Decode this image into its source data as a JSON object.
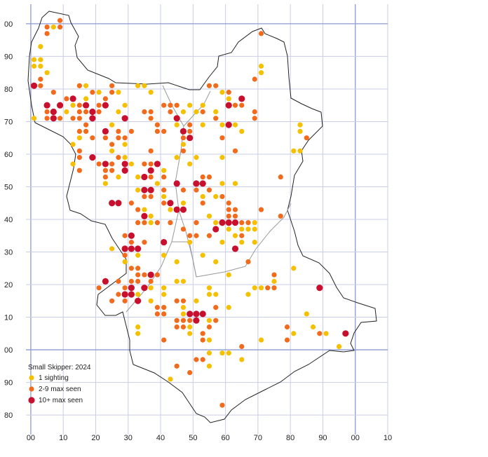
{
  "chart_data": {
    "type": "scatter",
    "legend_title": "Small Skipper:  2024",
    "xlim": [
      -1.5,
      110
    ],
    "ylim": [
      -26,
      106
    ],
    "xticks": [
      {
        "value": 0,
        "label": "00"
      },
      10,
      20,
      30,
      40,
      50,
      60,
      70,
      80,
      90,
      {
        "value": 100,
        "label": "00"
      },
      {
        "value": 110,
        "label": "10"
      }
    ],
    "yticks": [
      {
        "value": 100,
        "label": "00"
      },
      90,
      80,
      70,
      60,
      50,
      40,
      30,
      20,
      10,
      {
        "value": 0,
        "label": "00"
      },
      {
        "value": -10,
        "label": "90"
      },
      {
        "value": -20,
        "label": "80"
      }
    ],
    "grid": true,
    "series": [
      {
        "name": "1 sighting",
        "color": "#f5c000",
        "x": [
          1,
          3,
          1,
          3,
          3,
          5,
          7,
          1,
          71,
          71,
          15,
          17,
          33,
          35,
          37,
          27,
          59,
          61,
          49,
          53,
          47,
          51,
          57,
          27,
          29,
          13,
          11,
          19,
          25,
          45,
          59,
          63,
          65,
          83,
          83,
          81,
          83,
          15,
          13,
          25,
          29,
          13,
          23,
          27,
          33,
          41,
          51,
          59,
          59,
          63,
          53,
          57,
          33,
          41,
          43,
          43,
          47,
          35,
          37,
          37,
          55,
          57,
          61,
          65,
          67,
          59,
          63,
          65,
          69,
          69,
          69,
          25,
          33,
          29,
          41,
          49,
          53,
          57,
          45,
          41,
          33,
          37,
          41,
          55,
          55,
          57,
          61,
          67,
          69,
          71,
          75,
          81,
          61,
          47,
          53,
          55,
          33,
          33,
          49,
          55,
          55,
          59,
          61,
          65,
          71,
          81,
          85,
          87,
          91,
          95,
          43,
          55,
          37,
          47,
          51,
          49,
          47,
          45,
          29,
          31,
          39,
          45,
          49,
          45,
          53,
          47,
          17,
          21
        ],
        "values": [
          89,
          89,
          87,
          87,
          93,
          85,
          99,
          71,
          87,
          85,
          81,
          81,
          81,
          81,
          79,
          79,
          79,
          77,
          75,
          75,
          73,
          73,
          73,
          73,
          75,
          75,
          73,
          71,
          69,
          69,
          69,
          69,
          67,
          69,
          67,
          61,
          61,
          65,
          63,
          61,
          59,
          57,
          51,
          53,
          53,
          55,
          59,
          59,
          51,
          51,
          47,
          47,
          49,
          47,
          45,
          43,
          45,
          43,
          41,
          39,
          41,
          39,
          37,
          37,
          37,
          33,
          35,
          33,
          33,
          37,
          39,
          31,
          29,
          27,
          29,
          33,
          29,
          27,
          21,
          19,
          17,
          15,
          17,
          19,
          17,
          17,
          23,
          17,
          19,
          19,
          21,
          25,
          13,
          13,
          11,
          9,
          7,
          5,
          5,
          3,
          -1,
          -1,
          -1,
          -3,
          3,
          5,
          11,
          7,
          5,
          1,
          -9,
          -5,
          19,
          11,
          15,
          7,
          21,
          27,
          63,
          57,
          51,
          51,
          57,
          59,
          69,
          63,
          77,
          79
        ]
      },
      {
        "name": "2-9 max seen",
        "color": "#f26b1d",
        "x": [
          5,
          5,
          9,
          9,
          71,
          3,
          3,
          7,
          11,
          15,
          5,
          5,
          9,
          13,
          17,
          21,
          23,
          25,
          25,
          19,
          15,
          21,
          17,
          17,
          15,
          19,
          15,
          15,
          15,
          21,
          23,
          23,
          25,
          25,
          25,
          27,
          27,
          23,
          29,
          35,
          37,
          37,
          39,
          39,
          41,
          41,
          43,
          45,
          43,
          45,
          49,
          49,
          47,
          47,
          37,
          35,
          37,
          37,
          41,
          41,
          35,
          37,
          41,
          45,
          47,
          47,
          51,
          53,
          55,
          55,
          53,
          59,
          61,
          61,
          63,
          61,
          63,
          65,
          67,
          65,
          71,
          55,
          51,
          49,
          51,
          47,
          43,
          33,
          35,
          39,
          31,
          33,
          29,
          31,
          35,
          29,
          31,
          33,
          35,
          37,
          39,
          33,
          37,
          31,
          29,
          27,
          29,
          35,
          39,
          41,
          39,
          41,
          45,
          47,
          45,
          47,
          45,
          47,
          49,
          57,
          57,
          55,
          53,
          53,
          41,
          45,
          49,
          51,
          53,
          65,
          79,
          79,
          89,
          75,
          73,
          75,
          67,
          63,
          59,
          69,
          69,
          69,
          61,
          55,
          57,
          53,
          63,
          65,
          57,
          77,
          77,
          85,
          59,
          29,
          31,
          27,
          33,
          21,
          25,
          27,
          15,
          15
        ],
        "values": [
          97,
          99,
          101,
          99,
          97,
          83,
          81,
          79,
          77,
          75,
          73,
          71,
          71,
          71,
          73,
          75,
          77,
          81,
          79,
          79,
          81,
          73,
          69,
          67,
          67,
          65,
          61,
          59,
          55,
          57,
          55,
          53,
          55,
          57,
          63,
          67,
          65,
          65,
          65,
          73,
          73,
          71,
          69,
          67,
          67,
          75,
          75,
          75,
          73,
          71,
          69,
          67,
          65,
          61,
          61,
          57,
          57,
          53,
          53,
          49,
          47,
          47,
          45,
          43,
          43,
          49,
          49,
          53,
          53,
          49,
          45,
          47,
          45,
          43,
          43,
          41,
          41,
          39,
          39,
          35,
          43,
          35,
          35,
          35,
          39,
          37,
          39,
          39,
          39,
          39,
          45,
          43,
          35,
          33,
          33,
          29,
          25,
          23,
          23,
          23,
          23,
          21,
          21,
          21,
          19,
          17,
          15,
          19,
          13,
          13,
          11,
          11,
          15,
          15,
          9,
          9,
          7,
          7,
          9,
          9,
          13,
          7,
          5,
          3,
          3,
          -5,
          -7,
          -3,
          -3,
          1,
          7,
          3,
          5,
          19,
          19,
          23,
          27,
          61,
          65,
          73,
          71,
          83,
          79,
          81,
          81,
          73,
          75,
          75,
          71,
          53,
          41,
          65,
          -17,
          71,
          67,
          59,
          25,
          19,
          15,
          21,
          71,
          73
        ]
      },
      {
        "name": "10+ max seen",
        "color": "#c8102e",
        "x": [
          1,
          5,
          7,
          7,
          9,
          13,
          17,
          19,
          19,
          23,
          23,
          29,
          19,
          23,
          29,
          29,
          37,
          35,
          35,
          37,
          35,
          25,
          27,
          45,
          43,
          45,
          47,
          39,
          51,
          53,
          57,
          59,
          61,
          63,
          61,
          65,
          61,
          63,
          47,
          49,
          45,
          31,
          29,
          31,
          33,
          41,
          23,
          29,
          31,
          31,
          33,
          35,
          37,
          51,
          53,
          49,
          51,
          89,
          97
        ],
        "values": [
          81,
          75,
          73,
          71,
          75,
          77,
          75,
          73,
          71,
          75,
          67,
          71,
          59,
          57,
          57,
          55,
          55,
          53,
          49,
          49,
          41,
          45,
          45,
          51,
          45,
          43,
          43,
          57,
          51,
          51,
          37,
          39,
          39,
          39,
          75,
          77,
          69,
          31,
          67,
          65,
          71,
          35,
          31,
          31,
          31,
          33,
          21,
          17,
          17,
          19,
          15,
          19,
          23,
          11,
          11,
          11,
          9,
          19,
          5
        ]
      }
    ]
  }
}
